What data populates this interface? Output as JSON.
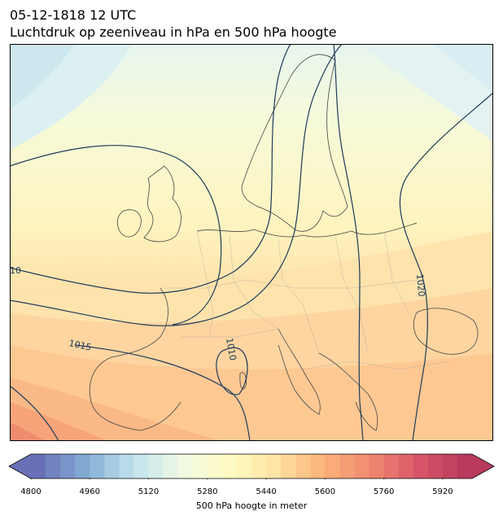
{
  "title": {
    "line1": "05-12-1818 12 UTC",
    "line2": "Luchtdruk op zeeniveau in hPa en 500 hPa hoogte"
  },
  "map": {
    "region": "Europe",
    "filled_field": "500 hPa geopotential height",
    "contour_field": "mean sea level pressure",
    "isobar_labels": [
      {
        "value": "1010",
        "text": "10"
      },
      {
        "value": "1015",
        "text": "1015"
      },
      {
        "value": "1010",
        "text": "1010"
      },
      {
        "value": "1020",
        "text": "1020"
      }
    ]
  },
  "colorbar": {
    "label": "500 hPa hoogte in meter",
    "min": 4800,
    "max": 6000,
    "step": 40,
    "extend": "both",
    "ticks": [
      "4800",
      "4960",
      "5120",
      "5280",
      "5440",
      "5600",
      "5760",
      "5920"
    ],
    "tick_values": [
      4800,
      4960,
      5120,
      5280,
      5440,
      5600,
      5760,
      5920
    ],
    "colormap_stops": [
      "#6a70b8",
      "#84acd4",
      "#c0e2ee",
      "#f0f9e4",
      "#fefbc4",
      "#fee4a4",
      "#fdb37a",
      "#f08a70",
      "#d9566a",
      "#b83a5c"
    ]
  }
}
